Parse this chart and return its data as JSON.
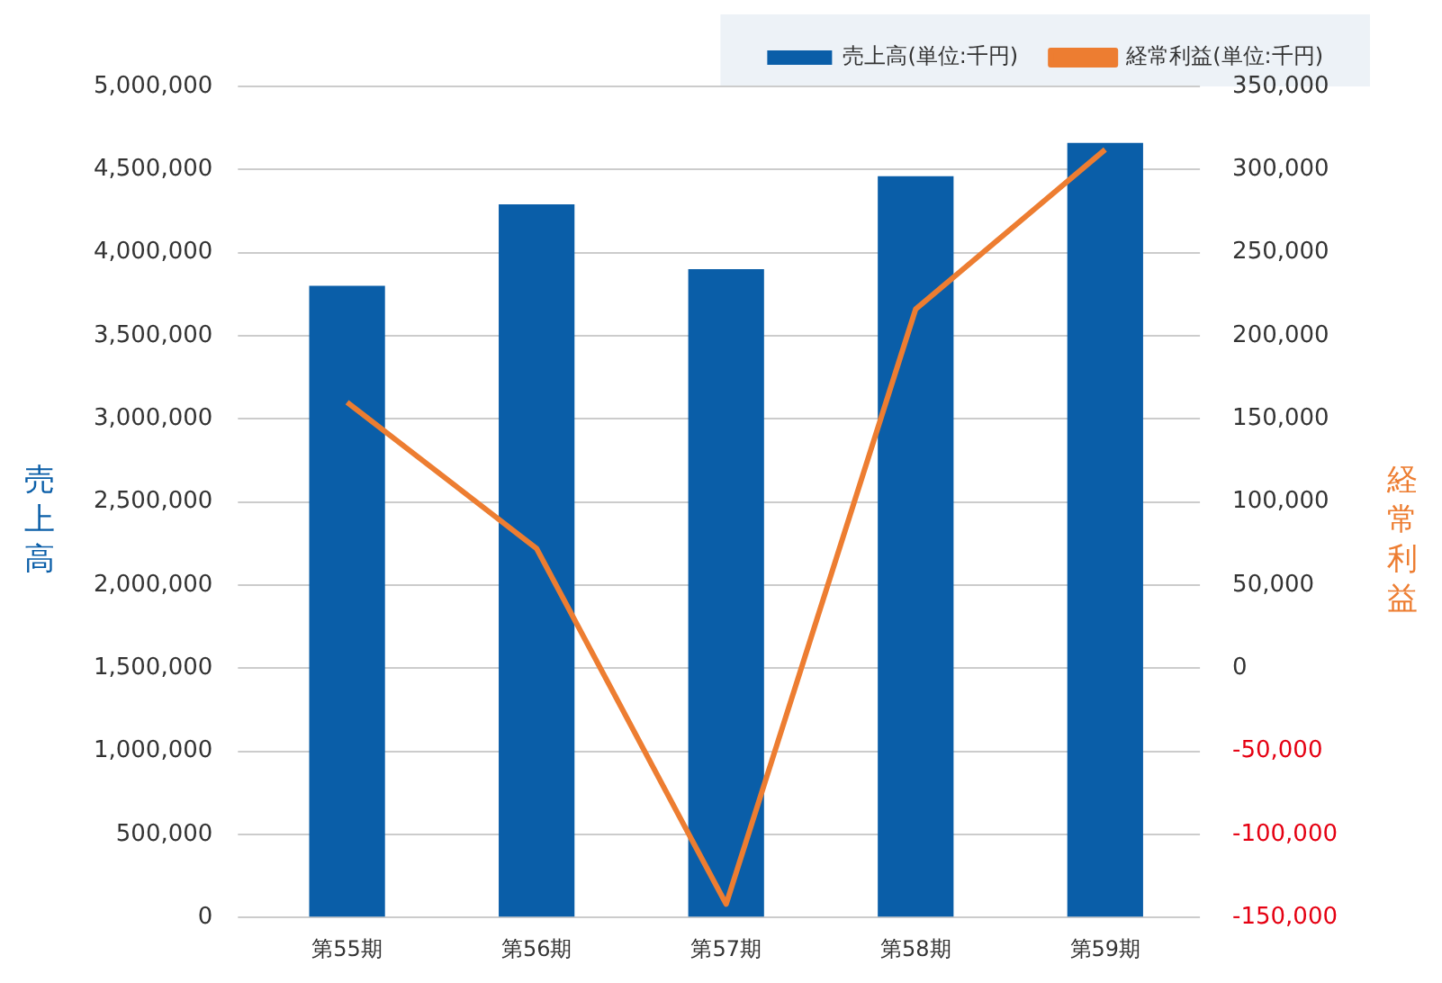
{
  "chart_data": {
    "type": "bar",
    "categories": [
      "第55期",
      "第56期",
      "第57期",
      "第58期",
      "第59期"
    ],
    "series": [
      {
        "name": "売上高(単位:千円)",
        "color": "#0a5ea8",
        "values": [
          3800000,
          4290000,
          3900000,
          4460000,
          4660000
        ]
      },
      {
        "name": "経常利益(単位:千円)",
        "color": "#ed7d31",
        "type": "line",
        "axis": "y2",
        "values": [
          160000,
          72000,
          -142000,
          216000,
          312000
        ]
      }
    ],
    "ylabel": "売上高",
    "y2label": "経常利益",
    "ylim": [
      0,
      5000000
    ],
    "yticks": [
      0,
      {
        "value": 500000,
        "label": "500,000"
      },
      {
        "value": 1000000,
        "label": "1,000,000"
      },
      {
        "value": 1500000,
        "label": "1,500,000"
      },
      {
        "value": 2000000,
        "label": "2,000,000"
      },
      {
        "value": 2500000,
        "label": "2,500,000"
      },
      {
        "value": 3000000,
        "label": "3,000,000"
      },
      {
        "value": 3500000,
        "label": "3,500,000"
      },
      {
        "value": 4000000,
        "label": "4,000,000"
      },
      {
        "value": 4500000,
        "label": "4,500,000"
      },
      {
        "value": 5000000,
        "label": "5,000,000"
      }
    ],
    "y2lim": [
      -150000,
      350000
    ],
    "y2ticks": [
      {
        "value": -150000,
        "label": "-150,000"
      },
      {
        "value": -100000,
        "label": "-100,000"
      },
      {
        "value": -50000,
        "label": "-50,000"
      },
      0,
      {
        "value": 50000,
        "label": "50,000"
      },
      {
        "value": 100000,
        "label": "100,000"
      },
      {
        "value": 150000,
        "label": "150,000"
      },
      {
        "value": 200000,
        "label": "200,000"
      },
      {
        "value": 250000,
        "label": "250,000"
      },
      {
        "value": 300000,
        "label": "300,000"
      },
      {
        "value": 350000,
        "label": "350,000"
      }
    ],
    "grid": "y",
    "legend": "top right",
    "marker": "none",
    "line_style": "solid"
  }
}
